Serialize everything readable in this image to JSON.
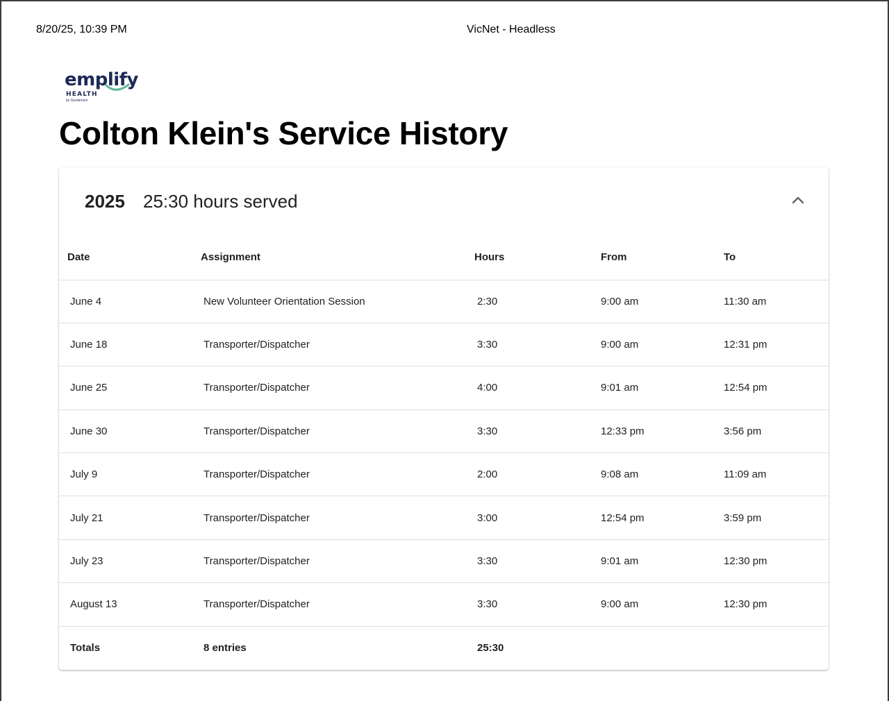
{
  "print_header": {
    "datetime": "8/20/25, 10:39 PM",
    "title": "VicNet - Headless"
  },
  "logo": {
    "word": "emplify",
    "sub": "HEALTH",
    "tiny": "by Gundersen",
    "colors": {
      "navy": "#1d2a57",
      "green": "#5fb9a0"
    }
  },
  "heading": "Colton Klein's Service History",
  "card": {
    "year": "2025",
    "hours_served": "25:30 hours served",
    "collapse_icon": "chevron-up-icon",
    "columns": [
      "Date",
      "Assignment",
      "Hours",
      "From",
      "To"
    ],
    "rows": [
      {
        "date": "June 4",
        "assignment": "New Volunteer Orientation Session",
        "hours": "2:30",
        "from": "9:00 am",
        "to": "11:30 am"
      },
      {
        "date": "June 18",
        "assignment": "Transporter/Dispatcher",
        "hours": "3:30",
        "from": "9:00 am",
        "to": "12:31 pm"
      },
      {
        "date": "June 25",
        "assignment": "Transporter/Dispatcher",
        "hours": "4:00",
        "from": "9:01 am",
        "to": "12:54 pm"
      },
      {
        "date": "June 30",
        "assignment": "Transporter/Dispatcher",
        "hours": "3:30",
        "from": "12:33 pm",
        "to": "3:56 pm"
      },
      {
        "date": "July 9",
        "assignment": "Transporter/Dispatcher",
        "hours": "2:00",
        "from": "9:08 am",
        "to": "11:09 am"
      },
      {
        "date": "July 21",
        "assignment": "Transporter/Dispatcher",
        "hours": "3:00",
        "from": "12:54 pm",
        "to": "3:59 pm"
      },
      {
        "date": "July 23",
        "assignment": "Transporter/Dispatcher",
        "hours": "3:30",
        "from": "9:01 am",
        "to": "12:30 pm"
      },
      {
        "date": "August 13",
        "assignment": "Transporter/Dispatcher",
        "hours": "3:30",
        "from": "9:00 am",
        "to": "12:30 pm"
      }
    ],
    "totals": {
      "label": "Totals",
      "entries": "8 entries",
      "hours": "25:30"
    }
  }
}
